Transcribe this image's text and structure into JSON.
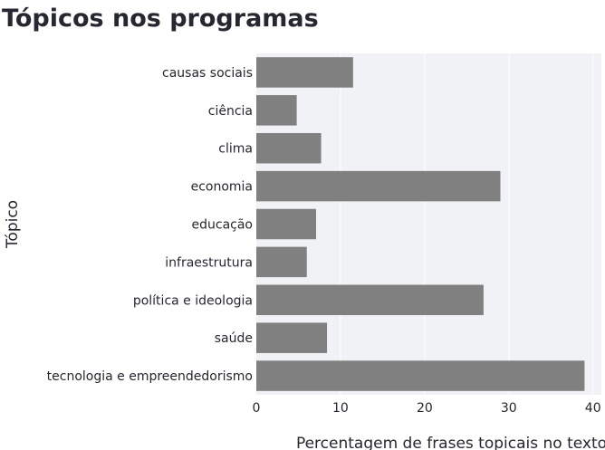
{
  "chart_data": {
    "type": "bar",
    "orientation": "horizontal",
    "title": "Tópicos nos programas",
    "xlabel": "Percentagem de frases topicais no texto",
    "ylabel": "Tópico",
    "categories": [
      "causas sociais",
      "ciência",
      "clima",
      "economia",
      "educação",
      "infraestrutura",
      "política e ideologia",
      "saúde",
      "tecnologia e empreendedorismo"
    ],
    "values": [
      11.5,
      4.8,
      7.7,
      29.0,
      7.1,
      6.0,
      27.0,
      8.4,
      39.0
    ],
    "xlim": [
      0,
      41
    ],
    "xticks": [
      0,
      10,
      20,
      30,
      40
    ],
    "grid": true,
    "legend": "none",
    "bar_color": "#808080",
    "plot_background": "#f0f2f6",
    "gridline_color": "#ffffff",
    "text_color": "#262730"
  }
}
